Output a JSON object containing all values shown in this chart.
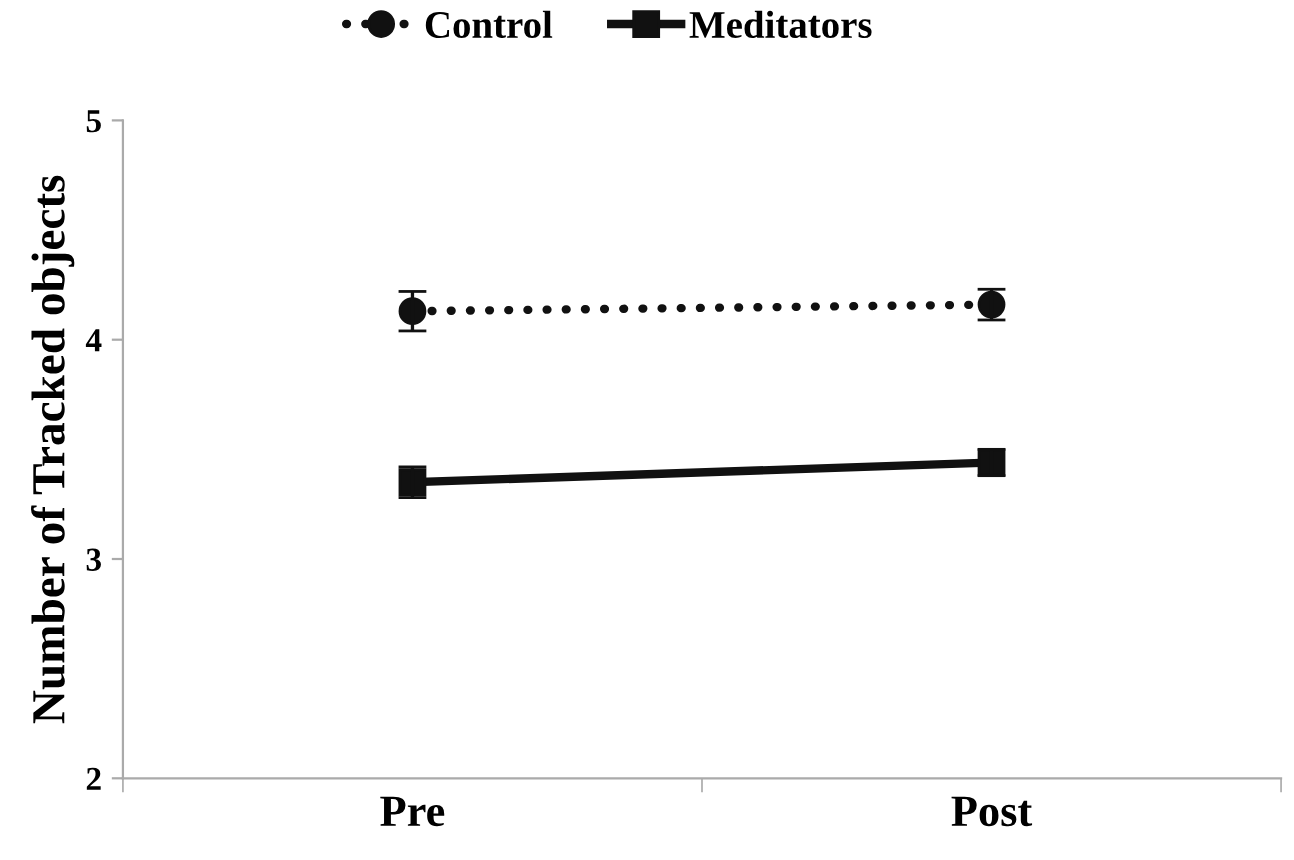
{
  "chart_data": {
    "type": "line",
    "ylabel": "Number of Tracked objects",
    "categories": [
      "Pre",
      "Post"
    ],
    "series": [
      {
        "name": "Control",
        "color": "#111111",
        "values": [
          4.13,
          4.16
        ],
        "errors": [
          0.09,
          0.07
        ],
        "marker": "circle",
        "line_style": "dotted"
      },
      {
        "name": "Meditators",
        "color": "#111111",
        "values": [
          3.35,
          3.44
        ],
        "errors": [
          0.07,
          0.06
        ],
        "marker": "square",
        "line_style": "solid"
      }
    ],
    "ylim": [
      2,
      5
    ],
    "yticks": [
      2,
      3,
      4,
      5
    ],
    "grid": false,
    "legend": "top"
  }
}
